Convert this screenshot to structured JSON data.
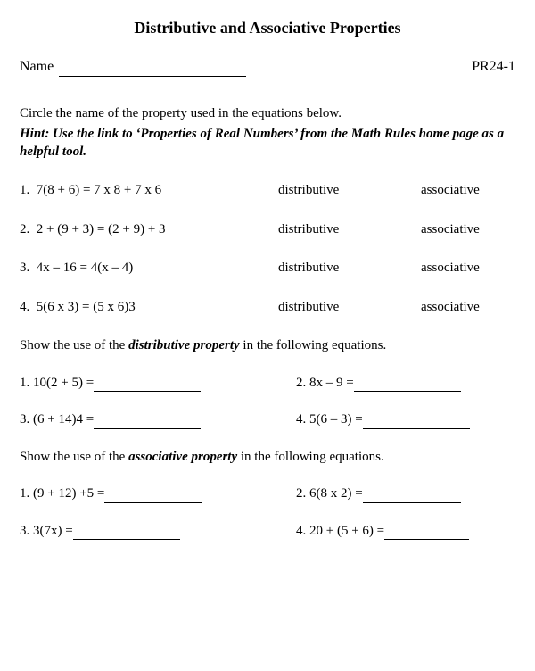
{
  "title": "Distributive and Associative Properties",
  "nameLabel": "Name",
  "worksheetCode": "PR24-1",
  "instruction": "Circle the name of the property used in the equations below.",
  "hint": "Hint: Use the link to ‘Properties of Real Numbers’ from the Math Rules home page as a helpful tool.",
  "section1": {
    "options": {
      "a": "distributive",
      "b": "associative"
    },
    "items": [
      {
        "num": "1.",
        "eq": "7(8 + 6) = 7 x 8 + 7 x 6"
      },
      {
        "num": "2.",
        "eq": "2 + (9 + 3) = (2 + 9) + 3"
      },
      {
        "num": "3.",
        "eq": "4x – 16 = 4(x – 4)"
      },
      {
        "num": "4.",
        "eq": "5(6 x 3) = (5 x 6)3"
      }
    ]
  },
  "section2": {
    "headPre": "Show the use of the ",
    "headEmph": "distributive property",
    "headPost": " in the following equations.",
    "pairs": [
      {
        "l": "1.  10(2 + 5) = ",
        "r": "2.  8x – 9 = "
      },
      {
        "l": "3.  (6 + 14)4 = ",
        "r": "4.  5(6 – 3) ="
      }
    ]
  },
  "section3": {
    "headPre": "Show the use of the ",
    "headEmph": "associative property",
    "headPost": " in the following equations.",
    "pairs": [
      {
        "l": "1.  (9 + 12) +5 = ",
        "r": "2.  6(8 x 2) = "
      },
      {
        "l": "3.  3(7x) = ",
        "r": "4.  20 + (5 + 6) = "
      }
    ]
  },
  "colors": {
    "text": "#000000",
    "background": "#ffffff"
  },
  "typography": {
    "fontFamily": "Times New Roman",
    "titleSize": 18,
    "bodySize": 15
  }
}
